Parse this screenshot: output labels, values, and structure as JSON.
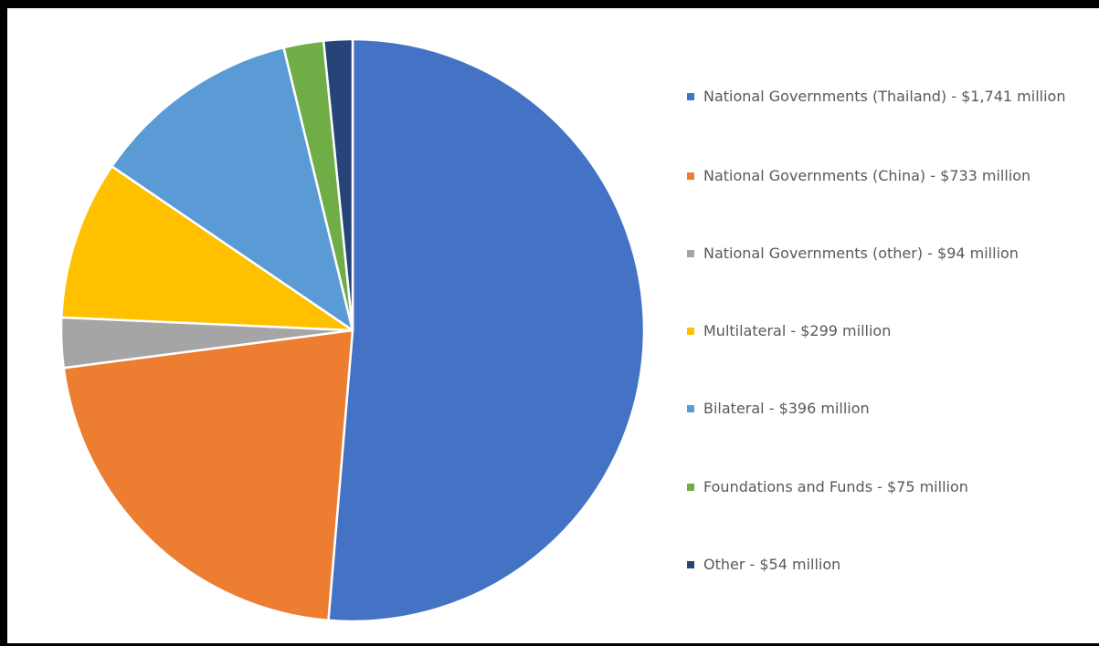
{
  "chart_data": {
    "type": "pie",
    "title": "",
    "series": [
      {
        "values": [
          1741,
          733,
          94,
          299,
          396,
          75,
          54
        ]
      }
    ],
    "categories": [
      "National Governments (Thailand) - $1,741 million",
      "National Governments (China) - $733 million",
      "National Governments (other) - $94 million",
      "Multilateral - $299 million",
      "Bilateral - $396 million",
      "Foundations and Funds - $75 million",
      "Other - $54 million"
    ],
    "colors": [
      "#4472C4",
      "#ED7D31",
      "#A5A5A5",
      "#FFC000",
      "#5B9BD5",
      "#70AD47",
      "#264478"
    ],
    "start_angle": "12 o'clock",
    "direction": "clockwise",
    "legend_position": "right"
  }
}
